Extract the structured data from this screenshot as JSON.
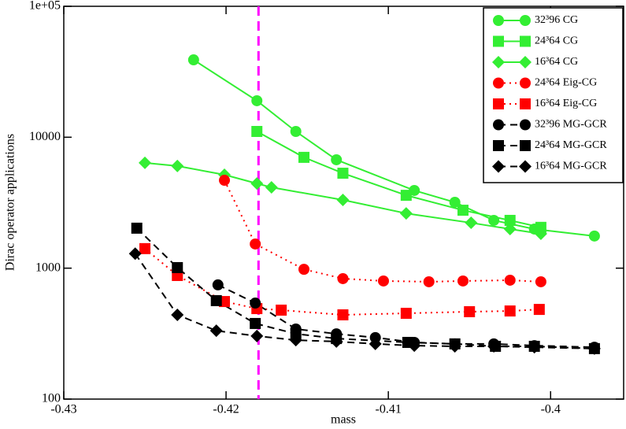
{
  "chart_data": {
    "type": "line",
    "x_label": "mass",
    "y_label": "Dirac operator applications",
    "xlim": [
      -0.43,
      -0.3955
    ],
    "xticks": [
      -0.43,
      -0.42,
      -0.41,
      -0.4
    ],
    "ylim": [
      100,
      100000
    ],
    "ylog": true,
    "yticks": [
      {
        "value": 100000,
        "label": "1e+05"
      },
      10000,
      1000,
      100
    ],
    "legend": "top-right",
    "vline": {
      "x": -0.418,
      "color": "#ff00ff",
      "linestyle": "dashed"
    },
    "series": [
      {
        "name": "32³96 CG",
        "color": "#33ee33",
        "marker": "circle",
        "linestyle": "solid",
        "x": [
          -0.422,
          -0.4181,
          -0.4157,
          -0.4132,
          -0.4084,
          -0.4059,
          -0.4035,
          -0.401,
          -0.3973
        ],
        "values": [
          39000,
          19000,
          11070,
          6730,
          3920,
          3185,
          2317,
          1990,
          1760
        ]
      },
      {
        "name": "24³64 CG",
        "color": "#33ee33",
        "marker": "square",
        "linestyle": "solid",
        "x": [
          -0.4181,
          -0.4152,
          -0.4128,
          -0.4089,
          -0.4054,
          -0.4025,
          -0.4006
        ],
        "values": [
          11070,
          7020,
          5310,
          3600,
          2770,
          2317,
          2050
        ]
      },
      {
        "name": "16³64 CG",
        "color": "#33ee33",
        "marker": "diamond",
        "linestyle": "solid",
        "x": [
          -0.425,
          -0.423,
          -0.4201,
          -0.4181,
          -0.4172,
          -0.4128,
          -0.4089,
          -0.4049,
          -0.4025,
          -0.4006
        ],
        "values": [
          6370,
          6030,
          5170,
          4430,
          4140,
          3320,
          2620,
          2220,
          1990,
          1830
        ]
      },
      {
        "name": "24³64 Eig-CG",
        "color": "#ff0000",
        "marker": "circle",
        "linestyle": "dotted",
        "x": [
          -0.4201,
          -0.4182,
          -0.4152,
          -0.4128,
          -0.4103,
          -0.4075,
          -0.4054,
          -0.4025,
          -0.4006
        ],
        "values": [
          4690,
          1530,
          980,
          832,
          798,
          787,
          798,
          809,
          787
        ]
      },
      {
        "name": "16³64 Eig-CG",
        "color": "#ff0000",
        "marker": "square",
        "linestyle": "dotted",
        "x": [
          -0.425,
          -0.423,
          -0.4201,
          -0.4181,
          -0.4166,
          -0.4128,
          -0.4089,
          -0.405,
          -0.4025,
          -0.4007
        ],
        "values": [
          1410,
          879,
          556,
          491,
          478,
          440,
          452,
          465,
          471,
          484
        ]
      },
      {
        "name": "32³96 MG-GCR",
        "color": "#000000",
        "marker": "circle",
        "linestyle": "dashed",
        "x": [
          -0.4205,
          -0.4182,
          -0.4157,
          -0.4132,
          -0.4108,
          -0.4084,
          -0.4059,
          -0.4035,
          -0.401,
          -0.3973
        ],
        "values": [
          745,
          541,
          343,
          315,
          295,
          271,
          264,
          264,
          256,
          249
        ]
      },
      {
        "name": "24³64 MG-GCR",
        "color": "#000000",
        "marker": "square",
        "linestyle": "dashed",
        "x": [
          -0.4255,
          -0.423,
          -0.4206,
          -0.4182,
          -0.4157,
          -0.4132,
          -0.4088,
          -0.4059,
          -0.4034,
          -0.401,
          -0.3973
        ],
        "values": [
          2020,
          1010,
          565,
          378,
          315,
          290,
          271,
          264,
          253,
          253,
          243
        ]
      },
      {
        "name": "16³64 MG-GCR",
        "color": "#000000",
        "marker": "diamond",
        "linestyle": "dashed",
        "x": [
          -0.4256,
          -0.423,
          -0.4206,
          -0.4181,
          -0.4157,
          -0.4132,
          -0.4108,
          -0.4084,
          -0.4059,
          -0.4035,
          -0.401,
          -0.3973
        ],
        "values": [
          1290,
          440,
          333,
          303,
          282,
          275,
          264,
          256,
          253,
          253,
          249,
          243
        ]
      }
    ]
  }
}
